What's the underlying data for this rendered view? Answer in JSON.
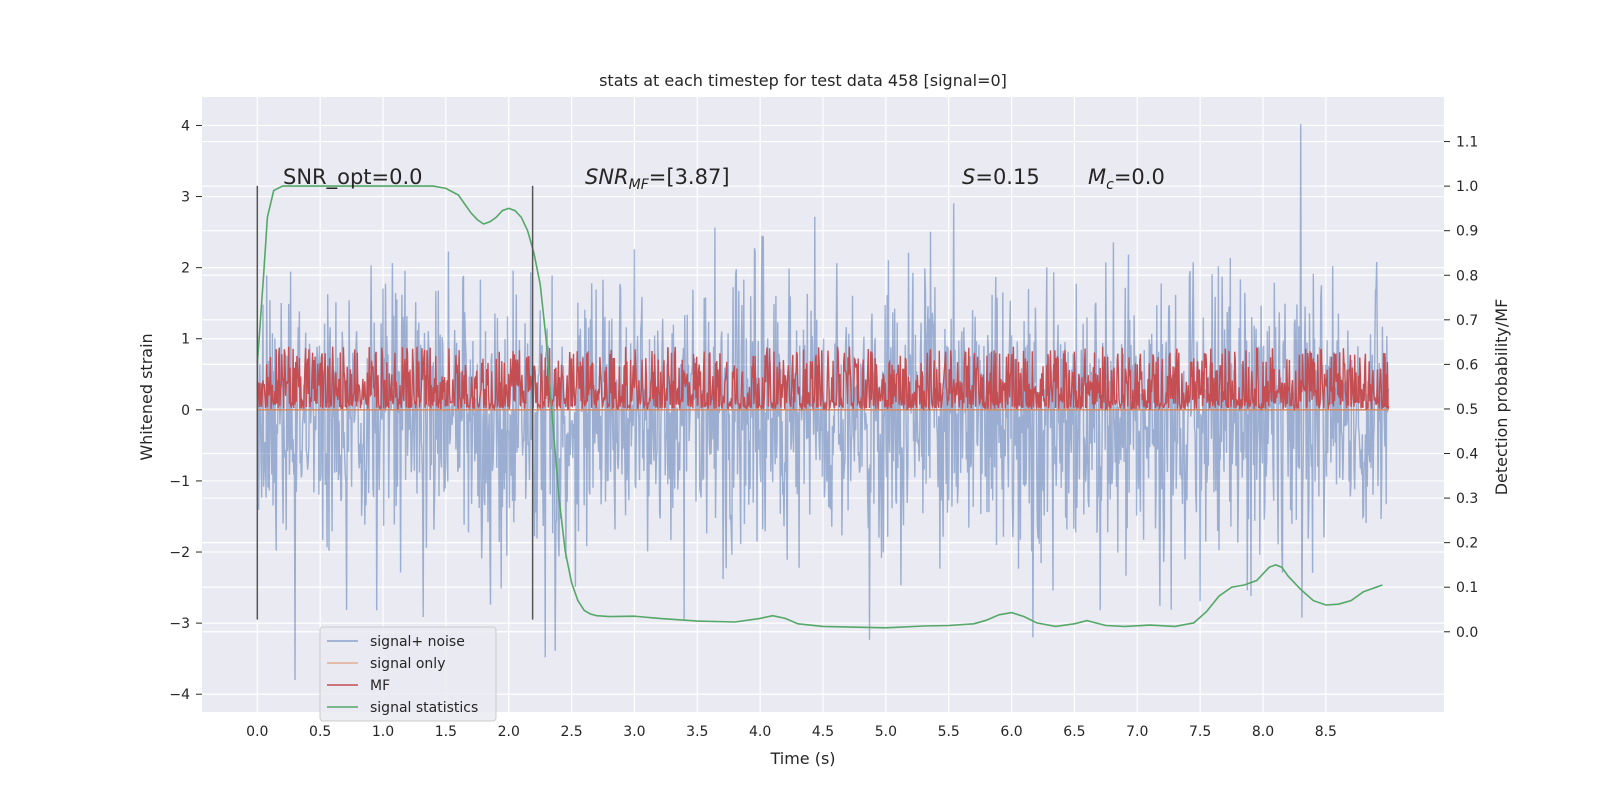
{
  "chart_data": {
    "type": "line",
    "title": "stats at each timestep for test data 458 [signal=0]",
    "xlabel": "Time (s)",
    "ylabel_left": "Whitened strain",
    "ylabel_right": "Detection probability/MF",
    "xlim": [
      -0.44,
      9.44
    ],
    "ylim_left": [
      -4.25,
      4.4
    ],
    "ylim_right": [
      -0.18,
      1.2
    ],
    "x_ticks": [
      "0.0",
      "0.5",
      "1.0",
      "1.5",
      "2.0",
      "2.5",
      "3.0",
      "3.5",
      "4.0",
      "4.5",
      "5.0",
      "5.5",
      "6.0",
      "6.5",
      "7.0",
      "7.5",
      "8.0",
      "8.5"
    ],
    "y_left_ticks": [
      "4",
      "3",
      "2",
      "1",
      "0",
      "−1",
      "−2",
      "−3",
      "−4"
    ],
    "y_right_ticks": [
      "1.1",
      "1.0",
      "0.9",
      "0.8",
      "0.7",
      "0.6",
      "0.5",
      "0.4",
      "0.3",
      "0.2",
      "0.1",
      "0.0"
    ],
    "colors": {
      "background": "#eaeaf2",
      "grid": "#ffffff",
      "signal_noise": "#4c72b0",
      "signal_only": "#dd8452",
      "mf": "#c44e52",
      "statistics": "#55a868",
      "vline": "#555555"
    },
    "legend": {
      "position": "lower-left",
      "entries": [
        "signal+ noise",
        "signal only",
        "MF",
        "signal statistics"
      ]
    },
    "annotations": {
      "snr_opt": "SNR_opt=0.0",
      "snr_mf_label": "SNR",
      "snr_mf_sub": "MF",
      "snr_mf_value": "=[3.87]",
      "s_label": "S",
      "s_value": "=0.15",
      "mc_label": "M",
      "mc_sub": "c",
      "mc_value": "=0.0"
    },
    "vlines": [
      {
        "x": 0.0,
        "y_range": [
          -2.95,
          3.15
        ]
      },
      {
        "x": 2.19,
        "y_range": [
          -2.95,
          3.15
        ]
      }
    ],
    "series": [
      {
        "name": "signal+ noise",
        "axis": "left",
        "duration": 9.0,
        "samples": 1800,
        "noise_center": -0.1,
        "noise_std": 1.0,
        "noise_extremes": [
          -3.8,
          4.02
        ]
      },
      {
        "name": "signal only",
        "axis": "left",
        "x": [
          0.0,
          9.0
        ],
        "y": [
          0.0,
          0.0
        ]
      },
      {
        "name": "MF",
        "axis": "right",
        "duration": 9.0,
        "samples": 1800,
        "base": 0.5,
        "range": [
          0.5,
          0.64
        ]
      },
      {
        "name": "signal statistics",
        "axis": "right",
        "x": [
          0.0,
          0.05,
          0.08,
          0.13,
          0.2,
          0.3,
          0.5,
          0.8,
          1.0,
          1.2,
          1.4,
          1.5,
          1.6,
          1.65,
          1.7,
          1.75,
          1.8,
          1.85,
          1.9,
          1.95,
          2.0,
          2.05,
          2.1,
          2.15,
          2.2,
          2.25,
          2.3,
          2.35,
          2.4,
          2.45,
          2.5,
          2.55,
          2.6,
          2.65,
          2.7,
          2.8,
          3.0,
          3.2,
          3.5,
          3.8,
          4.0,
          4.1,
          4.2,
          4.3,
          4.5,
          5.0,
          5.3,
          5.5,
          5.7,
          5.8,
          5.9,
          6.0,
          6.1,
          6.2,
          6.35,
          6.5,
          6.6,
          6.75,
          6.9,
          7.1,
          7.3,
          7.45,
          7.55,
          7.65,
          7.75,
          7.85,
          7.95,
          8.0,
          8.05,
          8.1,
          8.15,
          8.2,
          8.3,
          8.4,
          8.5,
          8.6,
          8.7,
          8.8,
          8.95
        ],
        "y": [
          0.6,
          0.8,
          0.93,
          0.99,
          1.0,
          1.0,
          1.0,
          1.0,
          1.0,
          1.0,
          1.0,
          0.995,
          0.98,
          0.96,
          0.94,
          0.925,
          0.915,
          0.92,
          0.93,
          0.945,
          0.95,
          0.945,
          0.93,
          0.9,
          0.85,
          0.78,
          0.65,
          0.47,
          0.3,
          0.18,
          0.11,
          0.07,
          0.048,
          0.04,
          0.036,
          0.034,
          0.035,
          0.03,
          0.024,
          0.022,
          0.03,
          0.036,
          0.03,
          0.018,
          0.012,
          0.009,
          0.013,
          0.014,
          0.018,
          0.026,
          0.038,
          0.043,
          0.034,
          0.02,
          0.012,
          0.018,
          0.025,
          0.014,
          0.012,
          0.015,
          0.012,
          0.02,
          0.045,
          0.08,
          0.1,
          0.105,
          0.115,
          0.13,
          0.145,
          0.15,
          0.145,
          0.125,
          0.095,
          0.07,
          0.06,
          0.062,
          0.07,
          0.09,
          0.105
        ]
      }
    ]
  }
}
